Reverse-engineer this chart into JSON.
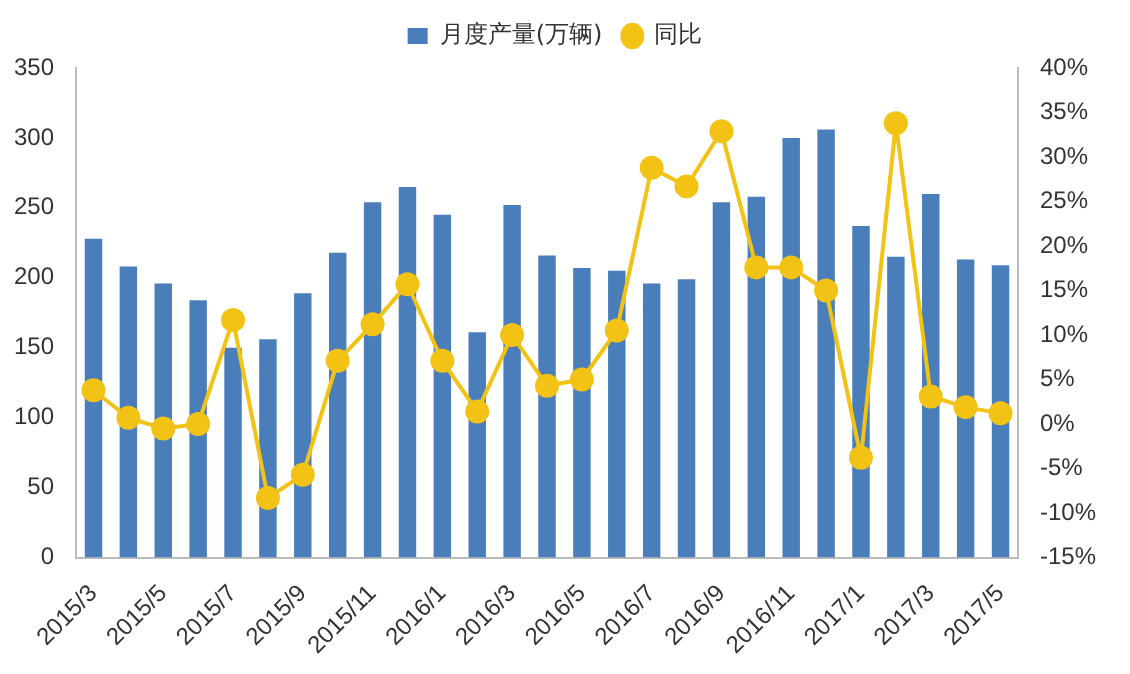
{
  "chart_data": {
    "type": "bar",
    "categories": [
      "2015/3",
      null,
      "2015/5",
      null,
      "2015/7",
      null,
      "2015/9",
      null,
      "2015/11",
      null,
      "2016/1",
      null,
      "2016/3",
      null,
      "2016/5",
      null,
      "2016/7",
      null,
      "2016/9",
      null,
      "2016/11",
      null,
      "2017/1",
      null,
      "2017/3",
      null,
      "2017/5"
    ],
    "series": [
      {
        "name": "月度产量(万辆)",
        "color": "#4a7ebb",
        "values": [
          228,
          208,
          196,
          184,
          150,
          156,
          189,
          218,
          254,
          265,
          245,
          161,
          252,
          216,
          207,
          205,
          196,
          199,
          254,
          258,
          300,
          306,
          237,
          215,
          260,
          213,
          209
        ]
      },
      {
        "name": "同比",
        "type": "line",
        "axis": "y2",
        "color": "#f2c314",
        "values": [
          3.8,
          0.7,
          -0.5,
          0,
          11.7,
          -8.3,
          -5.7,
          7.1,
          11.2,
          15.7,
          7.1,
          1.4,
          10,
          4.3,
          5,
          10.5,
          28.8,
          26.7,
          32.9,
          17.6,
          17.6,
          15,
          -3.8,
          33.8,
          3.1,
          1.9,
          1.2
        ]
      }
    ],
    "ylim": [
      0,
      350
    ],
    "yticks": [
      0,
      50,
      100,
      150,
      200,
      250,
      300,
      350
    ],
    "y2lim": [
      -15,
      40
    ],
    "y2ticks": [
      {
        "value": -15,
        "label": "-15%"
      },
      {
        "value": -10,
        "label": "-10%"
      },
      {
        "value": -5,
        "label": "-5%"
      },
      {
        "value": 0,
        "label": "0%"
      },
      {
        "value": 5,
        "label": "5%"
      },
      {
        "value": 10,
        "label": "10%"
      },
      {
        "value": 15,
        "label": "15%"
      },
      {
        "value": 20,
        "label": "20%"
      },
      {
        "value": 25,
        "label": "25%"
      },
      {
        "value": 30,
        "label": "30%"
      },
      {
        "value": 35,
        "label": "35%"
      },
      {
        "value": 40,
        "label": "40%"
      }
    ],
    "grid": false,
    "legend": "top",
    "marker": "circle"
  }
}
